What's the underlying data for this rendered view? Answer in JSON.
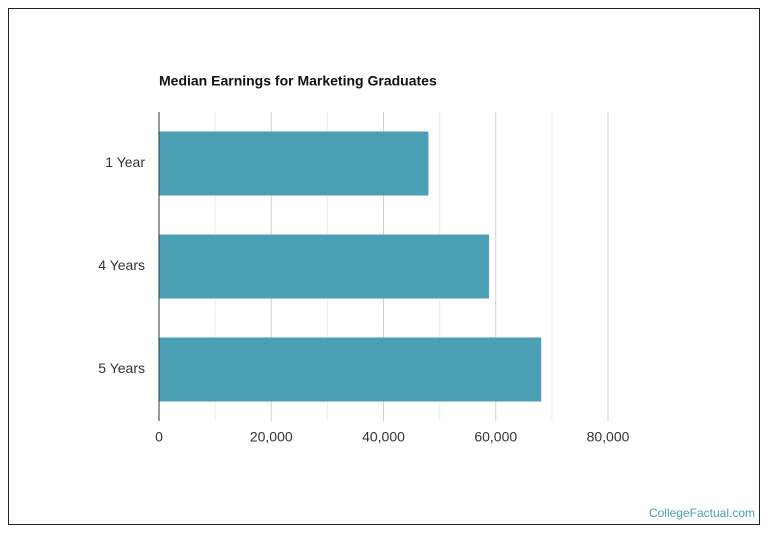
{
  "chart_data": {
    "type": "bar",
    "orientation": "horizontal",
    "title": "Median Earnings for Marketing Graduates",
    "categories": [
      "1 Year",
      "4 Years",
      "5 Years"
    ],
    "values": [
      48000,
      58800,
      68100
    ],
    "color": "#4a9fb5",
    "xlim": [
      0,
      80000
    ],
    "xticks": [
      0,
      {
        "value": 20000,
        "label": "20,000"
      },
      {
        "value": 40000,
        "label": "40,000"
      },
      {
        "value": 60000,
        "label": "60,000"
      },
      {
        "value": 80000,
        "label": "80,000"
      }
    ],
    "minor_xticks": [
      10000,
      30000,
      50000,
      70000
    ],
    "grid": true,
    "source": "CollegeFactual.com"
  }
}
